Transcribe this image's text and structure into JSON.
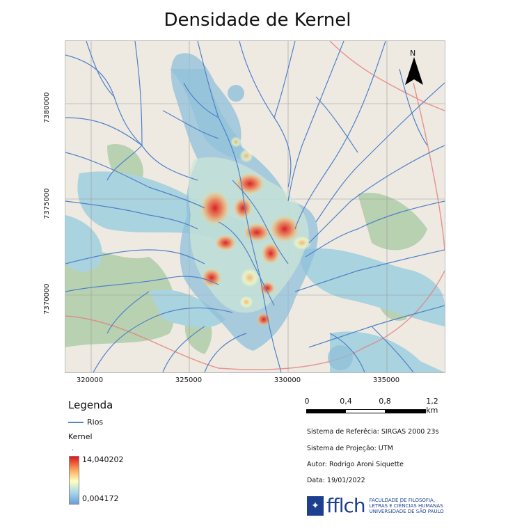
{
  "title": "Densidade de Kernel",
  "map": {
    "x_ticks": [
      "320000",
      "325000",
      "330000",
      "335000"
    ],
    "y_ticks": [
      "7380000",
      "7375000",
      "7370000"
    ],
    "north_label": "N"
  },
  "legend": {
    "title": "Legenda",
    "rios_label": "Rios",
    "kernel_label": "Kernel",
    "kernel_dot": ".",
    "kernel_max": "14,040202",
    "kernel_min": "0,004172",
    "colors": {
      "rios": "#4f80c9",
      "high": "#d7191c",
      "mid": "#ffffbf",
      "low": "#6a9ed6"
    }
  },
  "scale_bar": {
    "labels": [
      "0",
      "0,4",
      "0,8",
      "1,2 km"
    ]
  },
  "info": {
    "crs": "Sistema de Referêcia: SIRGAS 2000 23s",
    "projection": "Sistema de Projeção: UTM",
    "author": "Autor: Rodrigo Aroni Siquette",
    "date": "Data: 19/01/2022"
  },
  "logo": {
    "word": "fflch",
    "line1": "FACULDADE DE FILOSOFIA,",
    "line2": "LETRAS E CIÊNCIAS HUMANAS",
    "line3": "UNIVERSIDADE DE SÃO PAULO"
  }
}
